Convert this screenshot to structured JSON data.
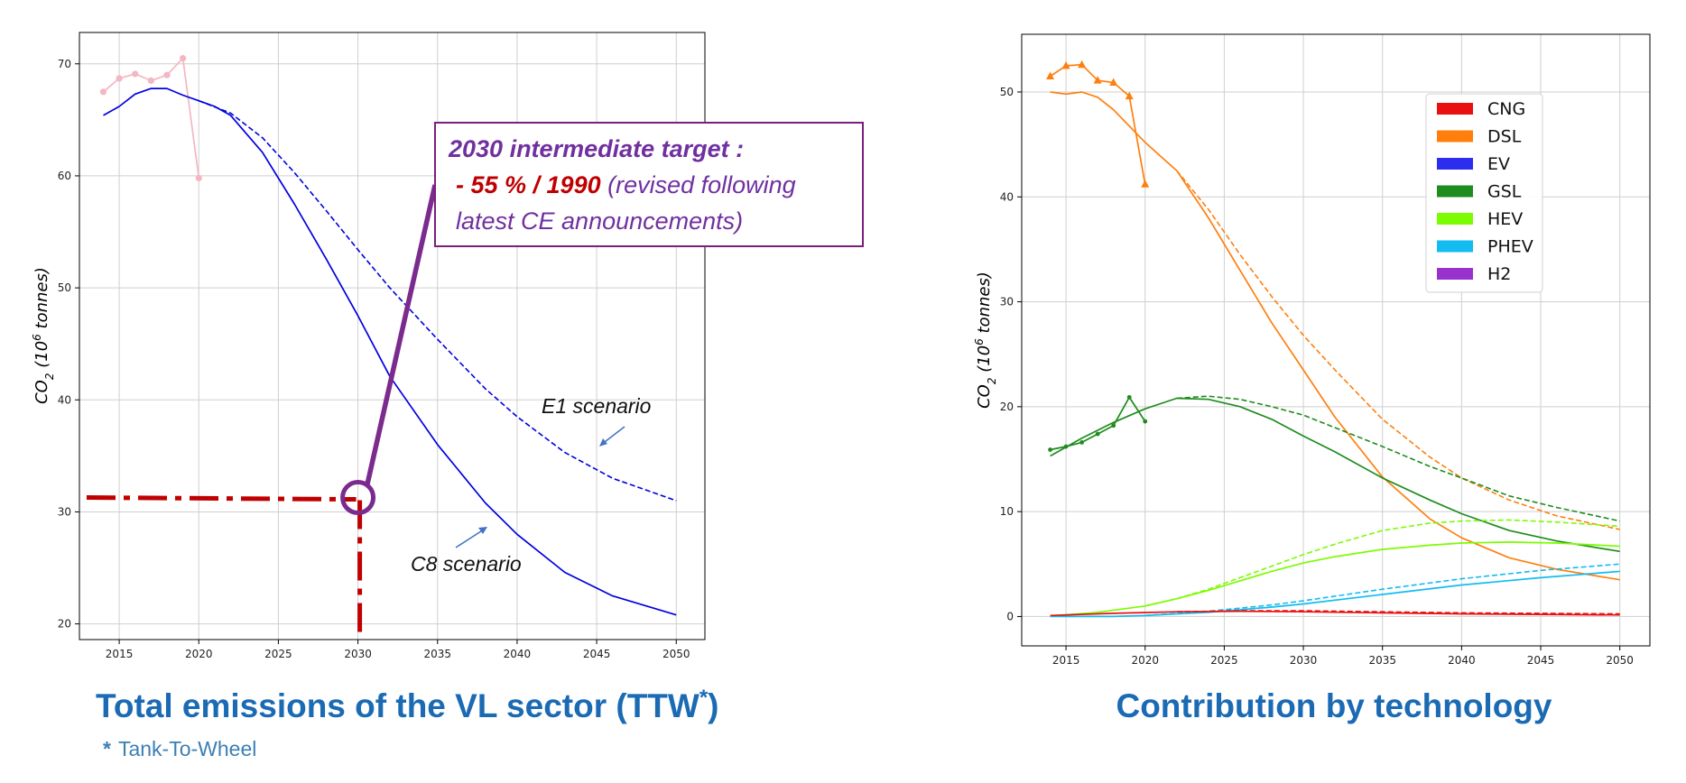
{
  "chart_data": [
    {
      "type": "line",
      "xlim": [
        2012.5,
        2051.8
      ],
      "ylim": [
        18.6,
        72.8
      ],
      "x_ticks": [
        2015,
        2020,
        2025,
        2030,
        2035,
        2040,
        2045,
        2050
      ],
      "y_ticks": [
        20,
        30,
        40,
        50,
        60,
        70
      ],
      "grid": true,
      "ylabel_main": "CO",
      "ylabel_sub": "2",
      "ylabel_unit_pre": " (10",
      "ylabel_unit_sup": "6",
      "ylabel_unit_post": " tonnes)",
      "series": [
        {
          "color": "#f4b6c2",
          "style": "solid",
          "marker": "circle",
          "x": [
            2014,
            2015,
            2016,
            2017,
            2018,
            2019,
            2020
          ],
          "y": [
            67.5,
            68.7,
            69.1,
            68.5,
            69.0,
            70.5,
            59.8
          ]
        },
        {
          "color": "#0000e0",
          "style": "solid",
          "marker": "none",
          "x": [
            2014,
            2015,
            2016,
            2017,
            2018,
            2019,
            2020,
            2021,
            2022,
            2024,
            2026,
            2028,
            2030,
            2032,
            2035,
            2038,
            2040,
            2043,
            2046,
            2050
          ],
          "y": [
            65.4,
            66.2,
            67.3,
            67.8,
            67.8,
            67.2,
            66.7,
            66.2,
            65.4,
            62.1,
            57.5,
            52.6,
            47.5,
            42.1,
            36.0,
            30.8,
            28.0,
            24.6,
            22.5,
            20.8
          ]
        },
        {
          "color": "#0000e0",
          "style": "dashed",
          "marker": "none",
          "x": [
            2020,
            2022,
            2024,
            2026,
            2028,
            2030,
            2032,
            2035,
            2038,
            2040,
            2043,
            2046,
            2050
          ],
          "y": [
            66.7,
            65.6,
            63.4,
            60.3,
            56.9,
            53.4,
            50.0,
            45.4,
            41.0,
            38.5,
            35.3,
            33.0,
            31.0
          ]
        }
      ],
      "annotations": {
        "e1": "E1 scenario",
        "c8": "C8 scenario",
        "target_line1": "2030 intermediate target :",
        "target_line2a": "- 55 % / 1990",
        "target_line2b": " (revised following",
        "target_line3": "latest CE announcements)",
        "target_point": {
          "x": 2030,
          "y": 31.2
        }
      }
    },
    {
      "type": "line",
      "xlim": [
        2012.2,
        2051.9
      ],
      "ylim": [
        -2.8,
        55.5
      ],
      "x_ticks": [
        2015,
        2020,
        2025,
        2030,
        2035,
        2040,
        2045,
        2050
      ],
      "y_ticks": [
        0,
        10,
        20,
        30,
        40,
        50
      ],
      "grid": true,
      "legend_position": "upper-right",
      "ylabel_main": "CO",
      "ylabel_sub": "2",
      "ylabel_unit_pre": " (10",
      "ylabel_unit_sup": "6",
      "ylabel_unit_post": " tonnes)",
      "legend": [
        {
          "label": "CNG",
          "color": "#e81010"
        },
        {
          "label": "DSL",
          "color": "#ff7f0e"
        },
        {
          "label": "EV",
          "color": "#2d2df0"
        },
        {
          "label": "GSL",
          "color": "#1e8c1e"
        },
        {
          "label": "HEV",
          "color": "#7cfc00"
        },
        {
          "label": "PHEV",
          "color": "#12bcf0"
        },
        {
          "label": "H2",
          "color": "#9932cc"
        }
      ],
      "series": [
        {
          "tech": "DSL",
          "color": "#ff7f0e",
          "style": "solid",
          "marker": "triangle",
          "x": [
            2014,
            2015,
            2016,
            2017,
            2018,
            2019,
            2020
          ],
          "y": [
            51.5,
            52.5,
            52.6,
            51.1,
            50.9,
            49.6,
            41.2
          ]
        },
        {
          "tech": "DSL",
          "color": "#ff7f0e",
          "style": "solid",
          "marker": "none",
          "x": [
            2014,
            2015,
            2016,
            2017,
            2018,
            2020,
            2022,
            2024,
            2026,
            2028,
            2030,
            2032,
            2035,
            2038,
            2040,
            2043,
            2046,
            2050
          ],
          "y": [
            50.0,
            49.8,
            50.0,
            49.5,
            48.3,
            45.2,
            42.5,
            38.0,
            33.0,
            28.0,
            23.5,
            19.0,
            13.3,
            9.3,
            7.5,
            5.6,
            4.5,
            3.5
          ]
        },
        {
          "tech": "DSL",
          "color": "#ff7f0e",
          "style": "dashed",
          "marker": "none",
          "x": [
            2022,
            2024,
            2026,
            2028,
            2030,
            2032,
            2035,
            2038,
            2040,
            2043,
            2046,
            2050
          ],
          "y": [
            42.5,
            38.8,
            34.5,
            30.5,
            26.8,
            23.5,
            18.8,
            15.2,
            13.2,
            11.1,
            9.6,
            8.3
          ]
        },
        {
          "tech": "GSL",
          "color": "#1e8c1e",
          "style": "solid",
          "marker": "circle",
          "x": [
            2014,
            2015,
            2016,
            2017,
            2018,
            2019,
            2020
          ],
          "y": [
            15.9,
            16.2,
            16.6,
            17.4,
            18.2,
            20.9,
            18.6
          ]
        },
        {
          "tech": "GSL",
          "color": "#1e8c1e",
          "style": "solid",
          "marker": "none",
          "x": [
            2014,
            2016,
            2018,
            2020,
            2022,
            2024,
            2026,
            2028,
            2030,
            2032,
            2035,
            2038,
            2040,
            2043,
            2046,
            2050
          ],
          "y": [
            15.3,
            17.0,
            18.5,
            19.8,
            20.8,
            20.7,
            20.0,
            18.8,
            17.2,
            15.7,
            13.2,
            11.1,
            9.8,
            8.2,
            7.2,
            6.2
          ]
        },
        {
          "tech": "GSL",
          "color": "#1e8c1e",
          "style": "dashed",
          "marker": "none",
          "x": [
            2022,
            2024,
            2026,
            2028,
            2030,
            2032,
            2035,
            2038,
            2040,
            2043,
            2046,
            2050
          ],
          "y": [
            20.8,
            21.0,
            20.7,
            20.0,
            19.2,
            18.0,
            16.2,
            14.3,
            13.2,
            11.5,
            10.4,
            9.1
          ]
        },
        {
          "tech": "HEV",
          "color": "#7cfc00",
          "style": "solid",
          "marker": "none",
          "x": [
            2014,
            2017,
            2020,
            2022,
            2024,
            2026,
            2028,
            2030,
            2032,
            2035,
            2038,
            2040,
            2043,
            2046,
            2050
          ],
          "y": [
            0.05,
            0.4,
            1.0,
            1.7,
            2.5,
            3.4,
            4.3,
            5.1,
            5.7,
            6.4,
            6.8,
            7.0,
            7.1,
            7.0,
            6.7
          ]
        },
        {
          "tech": "HEV",
          "color": "#7cfc00",
          "style": "dashed",
          "marker": "none",
          "x": [
            2020,
            2022,
            2024,
            2026,
            2028,
            2030,
            2032,
            2035,
            2038,
            2040,
            2043,
            2046,
            2050
          ],
          "y": [
            1.0,
            1.7,
            2.6,
            3.7,
            4.8,
            5.9,
            6.9,
            8.2,
            8.9,
            9.1,
            9.2,
            9.0,
            8.6
          ]
        },
        {
          "tech": "PHEV",
          "color": "#12bcf0",
          "style": "solid",
          "marker": "none",
          "x": [
            2014,
            2018,
            2020,
            2024,
            2028,
            2030,
            2035,
            2040,
            2045,
            2050
          ],
          "y": [
            0.0,
            0.0,
            0.1,
            0.4,
            0.9,
            1.2,
            2.1,
            3.0,
            3.7,
            4.3
          ]
        },
        {
          "tech": "PHEV",
          "color": "#12bcf0",
          "style": "dashed",
          "marker": "none",
          "x": [
            2020,
            2024,
            2028,
            2030,
            2035,
            2040,
            2045,
            2050
          ],
          "y": [
            0.1,
            0.5,
            1.1,
            1.5,
            2.6,
            3.6,
            4.4,
            5.0
          ]
        },
        {
          "tech": "CNG",
          "color": "#e81010",
          "style": "solid",
          "marker": "none",
          "x": [
            2014,
            2018,
            2022,
            2026,
            2030,
            2035,
            2040,
            2045,
            2050
          ],
          "y": [
            0.1,
            0.3,
            0.45,
            0.5,
            0.45,
            0.35,
            0.25,
            0.2,
            0.15
          ]
        },
        {
          "tech": "CNG",
          "color": "#e81010",
          "style": "dashed",
          "marker": "none",
          "x": [
            2022,
            2026,
            2030,
            2035,
            2040,
            2045,
            2050
          ],
          "y": [
            0.45,
            0.55,
            0.55,
            0.45,
            0.35,
            0.3,
            0.25
          ]
        }
      ]
    }
  ],
  "captions": {
    "left_pre": "Total emissions of the VL sector (TTW",
    "left_star": "*",
    "left_post": ")",
    "footnote_star": "*",
    "footnote_text": "Tank-To-Wheel",
    "right": "Contribution by technology"
  }
}
